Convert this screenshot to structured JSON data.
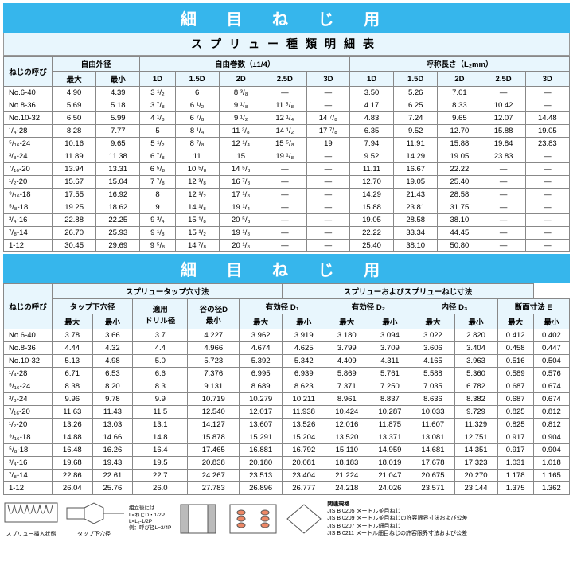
{
  "banner1": "細 目 ね じ 用",
  "subtitle1": "スプリュー種類明細表",
  "banner2": "細 目 ね じ 用",
  "t1_h": {
    "col0": "ねじの呼び",
    "g1": "自由外径",
    "g2": "自由巻数（±1/4）",
    "g3": "呼称長さ（L₂mm）",
    "max": "最大",
    "min": "最小",
    "d1": "1D",
    "d15": "1.5D",
    "d2": "2D",
    "d25": "2.5D",
    "d3": "3D"
  },
  "t1_rows": [
    {
      "n": "No.6-40",
      "a": "4.90",
      "b": "4.39",
      "c": "3 ¹/₂",
      "d": "6",
      "e": "8 ³/₈",
      "f": "—",
      "g": "—",
      "h": "3.50",
      "i": "5.26",
      "j": "7.01",
      "k": "—",
      "l": "—"
    },
    {
      "n": "No.8-36",
      "a": "5.69",
      "b": "5.18",
      "c": "3 ⁷/₈",
      "d": "6 ¹/₂",
      "e": "9 ¹/₈",
      "f": "11 ⁵/₈",
      "g": "—",
      "h": "4.17",
      "i": "6.25",
      "j": "8.33",
      "k": "10.42",
      "l": "—"
    },
    {
      "n": "No.10-32",
      "a": "6.50",
      "b": "5.99",
      "c": "4 ¹/₈",
      "d": "6 ⁷/₈",
      "e": "9 ¹/₂",
      "f": "12 ¹/₄",
      "g": "14 ⁷/₈",
      "h": "4.83",
      "i": "7.24",
      "j": "9.65",
      "k": "12.07",
      "l": "14.48"
    },
    {
      "n": "¹/₄-28",
      "a": "8.28",
      "b": "7.77",
      "c": "5",
      "d": "8 ¹/₄",
      "e": "11 ³/₈",
      "f": "14 ¹/₂",
      "g": "17 ⁷/₈",
      "h": "6.35",
      "i": "9.52",
      "j": "12.70",
      "k": "15.88",
      "l": "19.05"
    },
    {
      "n": "⁵/₁₆-24",
      "a": "10.16",
      "b": "9.65",
      "c": "5 ¹/₂",
      "d": "8 ⁷/₈",
      "e": "12 ¹/₄",
      "f": "15 ⁵/₈",
      "g": "19",
      "h": "7.94",
      "i": "11.91",
      "j": "15.88",
      "k": "19.84",
      "l": "23.83"
    },
    {
      "n": "³/₈-24",
      "a": "11.89",
      "b": "11.38",
      "c": "6 ⁷/₈",
      "d": "11",
      "e": "15",
      "f": "19 ¹/₈",
      "g": "—",
      "h": "9.52",
      "i": "14.29",
      "j": "19.05",
      "k": "23.83",
      "l": "—"
    },
    {
      "n": "⁷/₁₆-20",
      "a": "13.94",
      "b": "13.31",
      "c": "6 ⁵/₈",
      "d": "10 ⁵/₈",
      "e": "14 ⁵/₈",
      "f": "—",
      "g": "—",
      "h": "11.11",
      "i": "16.67",
      "j": "22.22",
      "k": "—",
      "l": "—"
    },
    {
      "n": "¹/₂-20",
      "a": "15.67",
      "b": "15.04",
      "c": "7 ⁷/₈",
      "d": "12 ³/₈",
      "e": "16 ⁷/₈",
      "f": "—",
      "g": "—",
      "h": "12.70",
      "i": "19.05",
      "j": "25.40",
      "k": "—",
      "l": "—"
    },
    {
      "n": "⁹/₁₆-18",
      "a": "17.55",
      "b": "16.92",
      "c": "8",
      "d": "12 ¹/₂",
      "e": "17 ¹/₈",
      "f": "—",
      "g": "—",
      "h": "14.29",
      "i": "21.43",
      "j": "28.58",
      "k": "—",
      "l": "—"
    },
    {
      "n": "⁵/₈-18",
      "a": "19.25",
      "b": "18.62",
      "c": "9",
      "d": "14 ¹/₈",
      "e": "19 ¹/₄",
      "f": "—",
      "g": "—",
      "h": "15.88",
      "i": "23.81",
      "j": "31.75",
      "k": "—",
      "l": "—"
    },
    {
      "n": "³/₄-16",
      "a": "22.88",
      "b": "22.25",
      "c": "9 ³/₄",
      "d": "15 ¹/₈",
      "e": "20 ⁵/₈",
      "f": "—",
      "g": "—",
      "h": "19.05",
      "i": "28.58",
      "j": "38.10",
      "k": "—",
      "l": "—"
    },
    {
      "n": "⁷/₈-14",
      "a": "26.70",
      "b": "25.93",
      "c": "9 ¹/₈",
      "d": "15 ¹/₂",
      "e": "19 ¹/₈",
      "f": "—",
      "g": "—",
      "h": "22.22",
      "i": "33.34",
      "j": "44.45",
      "k": "—",
      "l": "—"
    },
    {
      "n": "1-12",
      "a": "30.45",
      "b": "29.69",
      "c": "9 ⁵/₈",
      "d": "14 ⁷/₈",
      "e": "20 ¹/₈",
      "f": "—",
      "g": "—",
      "h": "25.40",
      "i": "38.10",
      "j": "50.80",
      "k": "—",
      "l": "—"
    }
  ],
  "t2_h": {
    "col0": "ねじの呼び",
    "gA": "スプリュータップ穴寸法",
    "gB": "スプリューおよびスプリューねじ寸法",
    "s1": "タップ下穴径",
    "s2": "適用\nドリル径",
    "s3": "谷の径D\n最小",
    "s4": "有効径 D₁",
    "s5": "有効径 D₂",
    "s6": "内径 D₃",
    "s7": "断面寸法 E",
    "max": "最大",
    "min": "最小"
  },
  "t2_rows": [
    {
      "n": "No.6-40",
      "a": "3.78",
      "b": "3.66",
      "c": "3.7",
      "d": "4.227",
      "e": "3.962",
      "f": "3.919",
      "g": "3.180",
      "h": "3.094",
      "i": "3.022",
      "j": "2.820",
      "k": "0.412",
      "l": "0.402"
    },
    {
      "n": "No.8-36",
      "a": "4.44",
      "b": "4.32",
      "c": "4.4",
      "d": "4.966",
      "e": "4.674",
      "f": "4.625",
      "g": "3.799",
      "h": "3.709",
      "i": "3.606",
      "j": "3.404",
      "k": "0.458",
      "l": "0.447"
    },
    {
      "n": "No.10-32",
      "a": "5.13",
      "b": "4.98",
      "c": "5.0",
      "d": "5.723",
      "e": "5.392",
      "f": "5.342",
      "g": "4.409",
      "h": "4.311",
      "i": "4.165",
      "j": "3.963",
      "k": "0.516",
      "l": "0.504"
    },
    {
      "n": "¹/₄-28",
      "a": "6.71",
      "b": "6.53",
      "c": "6.6",
      "d": "7.376",
      "e": "6.995",
      "f": "6.939",
      "g": "5.869",
      "h": "5.761",
      "i": "5.588",
      "j": "5.360",
      "k": "0.589",
      "l": "0.576"
    },
    {
      "n": "⁵/₁₆-24",
      "a": "8.38",
      "b": "8.20",
      "c": "8.3",
      "d": "9.131",
      "e": "8.689",
      "f": "8.623",
      "g": "7.371",
      "h": "7.250",
      "i": "7.035",
      "j": "6.782",
      "k": "0.687",
      "l": "0.674"
    },
    {
      "n": "³/₈-24",
      "a": "9.96",
      "b": "9.78",
      "c": "9.9",
      "d": "10.719",
      "e": "10.279",
      "f": "10.211",
      "g": "8.961",
      "h": "8.837",
      "i": "8.636",
      "j": "8.382",
      "k": "0.687",
      "l": "0.674"
    },
    {
      "n": "⁷/₁₆-20",
      "a": "11.63",
      "b": "11.43",
      "c": "11.5",
      "d": "12.540",
      "e": "12.017",
      "f": "11.938",
      "g": "10.424",
      "h": "10.287",
      "i": "10.033",
      "j": "9.729",
      "k": "0.825",
      "l": "0.812"
    },
    {
      "n": "¹/₂-20",
      "a": "13.26",
      "b": "13.03",
      "c": "13.1",
      "d": "14.127",
      "e": "13.607",
      "f": "13.526",
      "g": "12.016",
      "h": "11.875",
      "i": "11.607",
      "j": "11.329",
      "k": "0.825",
      "l": "0.812"
    },
    {
      "n": "⁹/₁₆-18",
      "a": "14.88",
      "b": "14.66",
      "c": "14.8",
      "d": "15.878",
      "e": "15.291",
      "f": "15.204",
      "g": "13.520",
      "h": "13.371",
      "i": "13.081",
      "j": "12.751",
      "k": "0.917",
      "l": "0.904"
    },
    {
      "n": "⁵/₈-18",
      "a": "16.48",
      "b": "16.26",
      "c": "16.4",
      "d": "17.465",
      "e": "16.881",
      "f": "16.792",
      "g": "15.110",
      "h": "14.959",
      "i": "14.681",
      "j": "14.351",
      "k": "0.917",
      "l": "0.904"
    },
    {
      "n": "³/₄-16",
      "a": "19.68",
      "b": "19.43",
      "c": "19.5",
      "d": "20.838",
      "e": "20.180",
      "f": "20.081",
      "g": "18.183",
      "h": "18.019",
      "i": "17.678",
      "j": "17.323",
      "k": "1.031",
      "l": "1.018"
    },
    {
      "n": "⁷/₈-14",
      "a": "22.86",
      "b": "22.61",
      "c": "22.7",
      "d": "24.267",
      "e": "23.513",
      "f": "23.404",
      "g": "21.224",
      "h": "21.047",
      "i": "20.675",
      "j": "20.270",
      "k": "1.178",
      "l": "1.165"
    },
    {
      "n": "1-12",
      "a": "26.04",
      "b": "25.76",
      "c": "26.0",
      "d": "27.783",
      "e": "26.896",
      "f": "26.777",
      "g": "24.218",
      "h": "24.026",
      "i": "23.571",
      "j": "23.144",
      "k": "1.375",
      "l": "1.362"
    }
  ],
  "footer": {
    "cap1": "スプリュー挿入状態",
    "cap2": "タップ下穴径",
    "notes_t": "関連規格",
    "notes": [
      "JIS B 0205 メートル並目ねじ",
      "JIS B 0209 メートル並目ねじの許容限界寸法および公差",
      "JIS B 0207 メートル細目ねじ",
      "JIS B 0211 メートル細目ねじの許容限界寸法および公差"
    ],
    "lh": "組立後には",
    "lh2": "L=ねじD・1/2P",
    "lh3": "L=L₂-1/2P",
    "lh4": "例：呼び径L=3/4P"
  }
}
